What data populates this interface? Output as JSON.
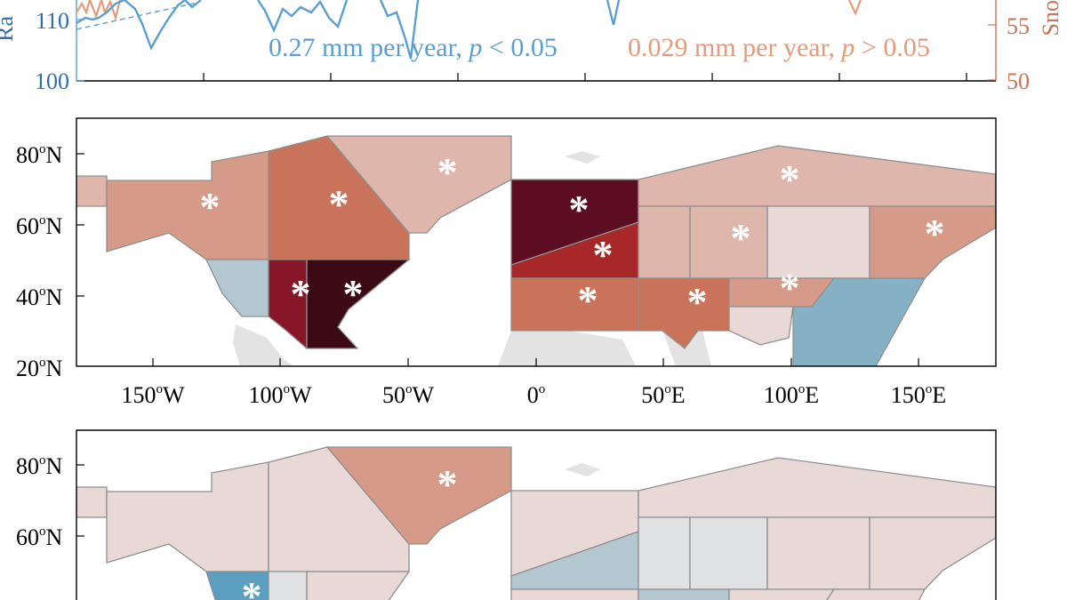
{
  "top_panel": {
    "left_axis_label": "Ra",
    "right_axis_label": "Sno",
    "left_ticks": [
      "110",
      "100"
    ],
    "right_ticks": [
      "55",
      "50"
    ],
    "rain_color": "#5a9fd0",
    "snow_color": "#e59a7a",
    "rain_trend": {
      "text": "0.27 mm per year, ",
      "p": "p",
      "rel": " < 0.05"
    },
    "snow_trend": {
      "text": "0.029 mm per year, ",
      "p": "p",
      "rel": " > 0.05"
    }
  },
  "lat_labels": [
    "80",
    "60",
    "40",
    "20"
  ],
  "lat_suffix": "N",
  "lon_labels": [
    {
      "num": "150",
      "suffix": "W"
    },
    {
      "num": "100",
      "suffix": "W"
    },
    {
      "num": "50",
      "suffix": "W"
    },
    {
      "num": "0",
      "suffix": ""
    },
    {
      "num": "50",
      "suffix": "E"
    },
    {
      "num": "100",
      "suffix": "E"
    },
    {
      "num": "150",
      "suffix": "E"
    }
  ],
  "significance_marker": "*",
  "colors": {
    "land": "#e3e3e3",
    "pale_pink": "#e8d9d6",
    "light_salmon": "#dfb6ab",
    "salmon": "#d59b88",
    "orange_red": "#c8735a",
    "crimson": "#a8282a",
    "dark_red": "#861628",
    "deep_maroon": "#5d0d21",
    "black_maroon": "#3b0a14",
    "light_blue": "#b2c7cf",
    "steel_blue": "#86b1c4",
    "blue": "#5b9ec0",
    "light_gray": "#dfe1e3"
  }
}
